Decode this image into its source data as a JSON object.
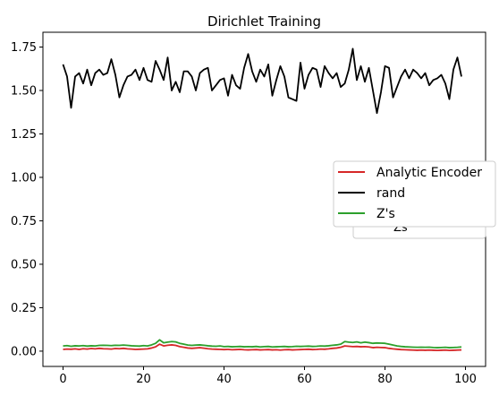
{
  "chart_data": {
    "type": "line",
    "title": "Dirichlet Training",
    "xlabel": "",
    "ylabel": "",
    "xlim": [
      -5,
      105
    ],
    "ylim": [
      -0.088,
      1.835
    ],
    "xticks": [
      0,
      20,
      40,
      60,
      80,
      100
    ],
    "yticks": [
      0.0,
      0.25,
      0.5,
      0.75,
      1.0,
      1.25,
      1.5,
      1.75
    ],
    "xtick_labels": [
      "0",
      "20",
      "40",
      "60",
      "80",
      "100"
    ],
    "ytick_labels": [
      "0.00",
      "0.25",
      "0.50",
      "0.75",
      "1.00",
      "1.25",
      "1.50",
      "1.75"
    ],
    "grid": false,
    "legend_position": "center-right",
    "legend_ghost_text": "Zs",
    "x": [
      0,
      1,
      2,
      3,
      4,
      5,
      6,
      7,
      8,
      9,
      10,
      11,
      12,
      13,
      14,
      15,
      16,
      17,
      18,
      19,
      20,
      21,
      22,
      23,
      24,
      25,
      26,
      27,
      28,
      29,
      30,
      31,
      32,
      33,
      34,
      35,
      36,
      37,
      38,
      39,
      40,
      41,
      42,
      43,
      44,
      45,
      46,
      47,
      48,
      49,
      50,
      51,
      52,
      53,
      54,
      55,
      56,
      57,
      58,
      59,
      60,
      61,
      62,
      63,
      64,
      65,
      66,
      67,
      68,
      69,
      70,
      71,
      72,
      73,
      74,
      75,
      76,
      77,
      78,
      79,
      80,
      81,
      82,
      83,
      84,
      85,
      86,
      87,
      88,
      89,
      90,
      91,
      92,
      93,
      94,
      95,
      96,
      97,
      98,
      99
    ],
    "series": [
      {
        "name": "Analytic Encoder",
        "color": "#d62728",
        "values": [
          0.01,
          0.012,
          0.011,
          0.013,
          0.01,
          0.014,
          0.012,
          0.015,
          0.013,
          0.016,
          0.014,
          0.013,
          0.012,
          0.015,
          0.014,
          0.016,
          0.013,
          0.012,
          0.01,
          0.011,
          0.012,
          0.013,
          0.018,
          0.025,
          0.04,
          0.03,
          0.034,
          0.036,
          0.033,
          0.026,
          0.022,
          0.018,
          0.016,
          0.018,
          0.02,
          0.017,
          0.014,
          0.012,
          0.011,
          0.01,
          0.009,
          0.01,
          0.008,
          0.009,
          0.01,
          0.008,
          0.007,
          0.008,
          0.009,
          0.007,
          0.008,
          0.009,
          0.007,
          0.008,
          0.006,
          0.008,
          0.009,
          0.007,
          0.008,
          0.009,
          0.01,
          0.011,
          0.009,
          0.01,
          0.012,
          0.011,
          0.013,
          0.016,
          0.018,
          0.022,
          0.03,
          0.028,
          0.026,
          0.027,
          0.025,
          0.026,
          0.024,
          0.02,
          0.022,
          0.021,
          0.02,
          0.016,
          0.013,
          0.011,
          0.009,
          0.008,
          0.007,
          0.006,
          0.005,
          0.006,
          0.005,
          0.006,
          0.005,
          0.004,
          0.005,
          0.006,
          0.004,
          0.005,
          0.006,
          0.007
        ]
      },
      {
        "name": "rand",
        "color": "#000000",
        "values": [
          1.65,
          1.58,
          1.4,
          1.58,
          1.6,
          1.54,
          1.62,
          1.53,
          1.6,
          1.62,
          1.59,
          1.6,
          1.68,
          1.59,
          1.46,
          1.53,
          1.58,
          1.59,
          1.62,
          1.56,
          1.63,
          1.56,
          1.55,
          1.67,
          1.62,
          1.56,
          1.69,
          1.5,
          1.55,
          1.49,
          1.61,
          1.61,
          1.58,
          1.5,
          1.6,
          1.62,
          1.63,
          1.5,
          1.53,
          1.56,
          1.57,
          1.47,
          1.59,
          1.53,
          1.51,
          1.63,
          1.71,
          1.61,
          1.55,
          1.62,
          1.58,
          1.65,
          1.47,
          1.56,
          1.64,
          1.58,
          1.46,
          1.45,
          1.44,
          1.66,
          1.51,
          1.59,
          1.63,
          1.62,
          1.52,
          1.64,
          1.6,
          1.57,
          1.6,
          1.52,
          1.54,
          1.62,
          1.74,
          1.56,
          1.64,
          1.55,
          1.63,
          1.5,
          1.37,
          1.49,
          1.64,
          1.63,
          1.46,
          1.52,
          1.58,
          1.62,
          1.57,
          1.62,
          1.6,
          1.57,
          1.6,
          1.53,
          1.56,
          1.57,
          1.59,
          1.54,
          1.45,
          1.62,
          1.69,
          1.58
        ]
      },
      {
        "name": "Z's",
        "color": "#2ca02c",
        "values": [
          0.03,
          0.032,
          0.028,
          0.031,
          0.03,
          0.032,
          0.029,
          0.031,
          0.03,
          0.033,
          0.034,
          0.033,
          0.032,
          0.034,
          0.033,
          0.035,
          0.033,
          0.031,
          0.03,
          0.029,
          0.032,
          0.03,
          0.036,
          0.045,
          0.065,
          0.048,
          0.052,
          0.055,
          0.053,
          0.045,
          0.04,
          0.035,
          0.033,
          0.035,
          0.036,
          0.034,
          0.031,
          0.029,
          0.028,
          0.03,
          0.026,
          0.027,
          0.025,
          0.026,
          0.027,
          0.025,
          0.026,
          0.025,
          0.027,
          0.024,
          0.026,
          0.027,
          0.024,
          0.025,
          0.026,
          0.027,
          0.025,
          0.026,
          0.028,
          0.027,
          0.028,
          0.029,
          0.027,
          0.028,
          0.03,
          0.029,
          0.031,
          0.034,
          0.036,
          0.04,
          0.055,
          0.052,
          0.05,
          0.053,
          0.048,
          0.052,
          0.049,
          0.045,
          0.047,
          0.046,
          0.045,
          0.04,
          0.035,
          0.03,
          0.027,
          0.025,
          0.024,
          0.023,
          0.022,
          0.023,
          0.022,
          0.023,
          0.021,
          0.02,
          0.021,
          0.022,
          0.02,
          0.021,
          0.022,
          0.024
        ]
      }
    ]
  }
}
